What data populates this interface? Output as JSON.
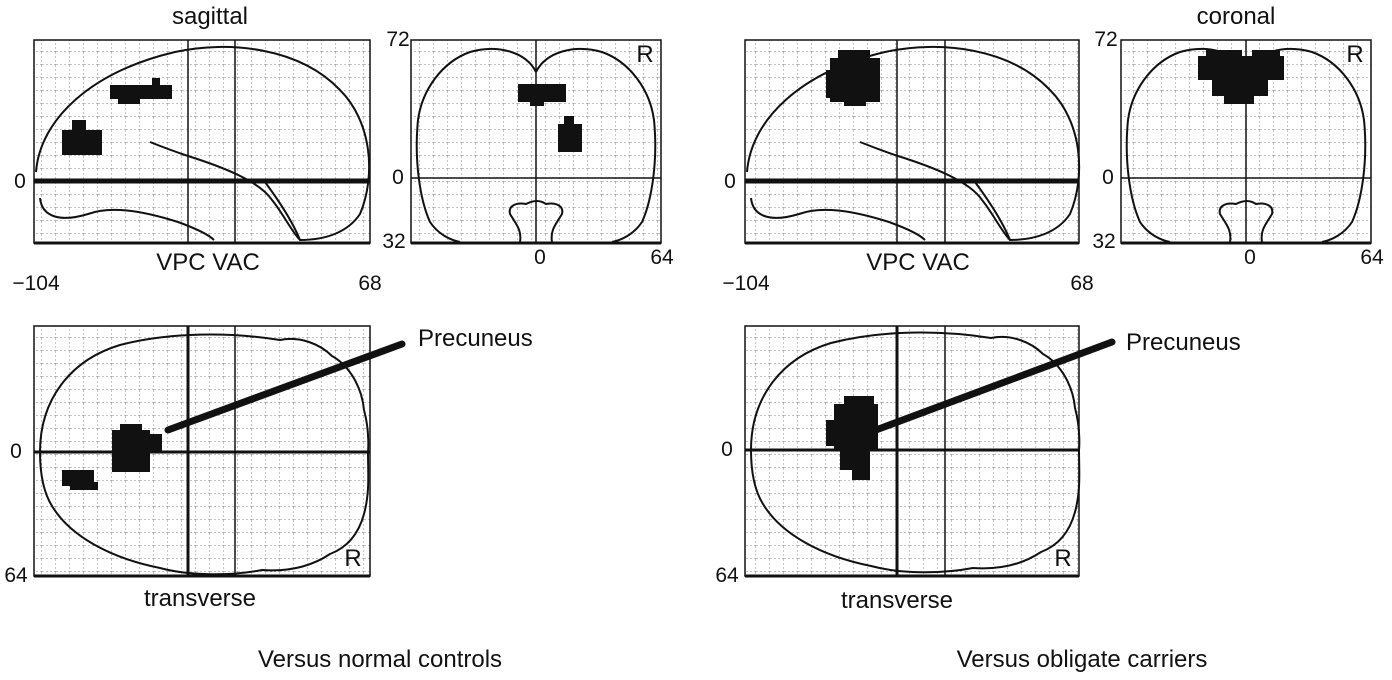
{
  "colors": {
    "ink": "#111111",
    "grid": "#9a9a9a",
    "background": "#ffffff"
  },
  "panels": [
    {
      "key": "left",
      "caption": "Versus normal controls",
      "sagittal": {
        "title": "sagittal",
        "axis_label": "VPC VAC",
        "y_zero": "0",
        "x_min": "−104",
        "x_max": "68"
      },
      "coronal": {
        "title": "",
        "y_top": "72",
        "y_bottom": "32",
        "x_zero": "0",
        "x_max": "64",
        "side_marker": "R"
      },
      "transverse": {
        "title": "transverse",
        "y_zero": "0",
        "y_bottom": "64",
        "side_marker": "R"
      },
      "annotation": "Precuneus"
    },
    {
      "key": "right",
      "caption": "Versus obligate carriers",
      "sagittal": {
        "title": "",
        "axis_label": "VPC VAC",
        "y_zero": "0",
        "x_min": "−104",
        "x_max": "68"
      },
      "coronal": {
        "title": "coronal",
        "y_top": "72",
        "y_bottom": "32",
        "x_zero": "0",
        "x_max": "64",
        "side_marker": "R"
      },
      "transverse": {
        "title": "transverse",
        "y_zero": "0",
        "y_bottom": "64",
        "side_marker": "R"
      },
      "annotation": "Precuneus"
    }
  ]
}
